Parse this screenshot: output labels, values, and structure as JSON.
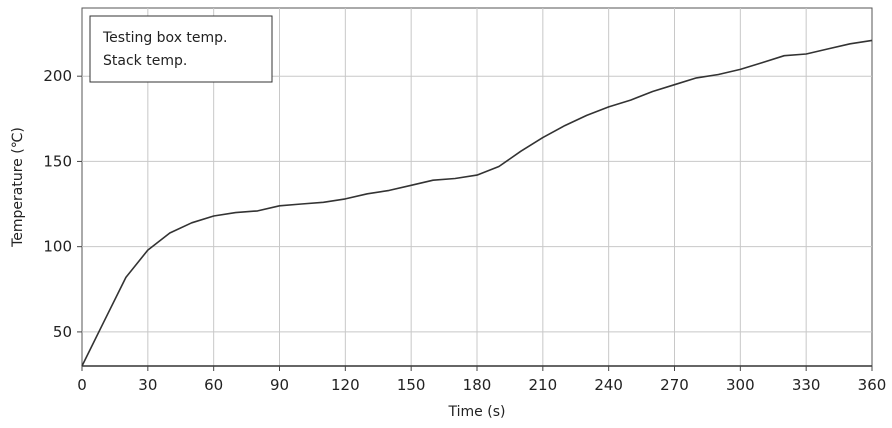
{
  "chart_data": {
    "type": "line",
    "xlabel": "Time (s)",
    "ylabel": "Temperature (℃)",
    "xlim": [
      0,
      360
    ],
    "ylim": [
      30,
      240
    ],
    "x_ticks": [
      0,
      30,
      60,
      90,
      120,
      150,
      180,
      210,
      240,
      270,
      300,
      330,
      360
    ],
    "y_ticks": [
      50,
      100,
      150,
      200
    ],
    "x_tick_labels": [
      "0",
      "30",
      "60",
      "90",
      "120",
      "150",
      "180",
      "210",
      "240",
      "270",
      "300",
      "330",
      "360"
    ],
    "y_tick_labels": [
      "50",
      "100",
      "150",
      "200"
    ],
    "grid": true,
    "legend_position": "top-left",
    "series": [
      {
        "name": "Testing box temp.",
        "color": "#333333",
        "x": [
          0,
          10,
          20,
          30,
          40,
          50,
          60,
          70,
          80,
          90,
          100,
          110,
          120,
          130,
          140,
          150,
          160,
          170,
          180,
          190,
          200,
          210,
          220,
          230,
          240,
          250,
          260,
          270,
          280,
          290,
          300,
          310,
          320,
          330,
          340,
          350,
          360
        ],
        "y": [
          30,
          56,
          82,
          98,
          108,
          114,
          118,
          120,
          121,
          124,
          125,
          126,
          128,
          131,
          133,
          136,
          139,
          140,
          142,
          147,
          156,
          164,
          171,
          177,
          182,
          186,
          191,
          195,
          199,
          201,
          204,
          208,
          212,
          213,
          216,
          219,
          221
        ]
      },
      {
        "name": "Stack temp.",
        "color": "#333333",
        "x": [
          0,
          360
        ],
        "y": [
          30,
          30
        ]
      }
    ]
  }
}
